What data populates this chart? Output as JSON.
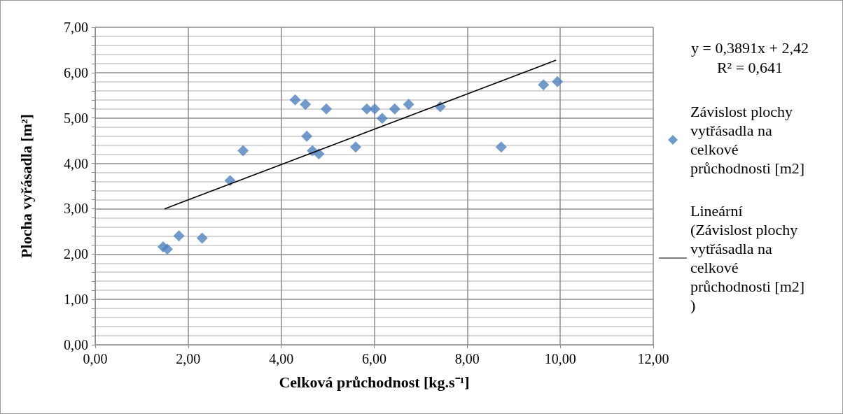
{
  "chart_data": {
    "type": "scatter",
    "xlabel": "Celková průchodnost [kg.s⁻¹]",
    "ylabel": "Plocha vyřásadla [m²]",
    "annotations": [
      "y = 0,3891x + 2,42",
      "R² = 0,641"
    ],
    "series": [
      {
        "name": "Závislost plochy vytřásadla na celkové průchodnosti [m2]",
        "color": "#4f81bd",
        "marker": "diamond",
        "x": [
          1.46,
          1.55,
          1.8,
          2.3,
          2.9,
          3.18,
          4.3,
          4.52,
          4.97,
          4.55,
          4.67,
          4.81,
          5.6,
          5.84,
          6.01,
          6.17,
          6.44,
          6.74,
          7.42,
          8.73,
          9.64,
          9.94
        ],
        "values": [
          2.16,
          2.11,
          2.4,
          2.35,
          3.62,
          4.28,
          5.4,
          5.3,
          5.2,
          4.6,
          4.28,
          4.21,
          4.36,
          5.2,
          5.2,
          4.99,
          5.2,
          5.3,
          5.25,
          4.36,
          5.73,
          5.8
        ]
      },
      {
        "name": "Lineární (Závislost plochy vytřásadla na celkové průchodnosti [m2])",
        "type": "line",
        "color": "#000000",
        "marker": "none",
        "x": [
          1.5,
          9.9
        ],
        "values": [
          3.0,
          6.27
        ]
      }
    ],
    "xlim": [
      0,
      12
    ],
    "xticks": [
      {
        "value": 0,
        "label": "0,00"
      },
      {
        "value": 2,
        "label": "2,00"
      },
      {
        "value": 4,
        "label": "4,00"
      },
      {
        "value": 6,
        "label": "6,00"
      },
      {
        "value": 8,
        "label": "8,00"
      },
      {
        "value": 10,
        "label": "10,00"
      },
      {
        "value": 12,
        "label": "12,00"
      }
    ],
    "ylim": [
      0,
      7
    ],
    "yticks": [
      {
        "value": 0,
        "label": "0,00"
      },
      {
        "value": 0.2,
        "label": null
      },
      {
        "value": 0.4,
        "label": null
      },
      {
        "value": 0.6,
        "label": null
      },
      {
        "value": 0.8,
        "label": null
      },
      {
        "value": 1,
        "label": "1,00"
      },
      {
        "value": 1.2,
        "label": null
      },
      {
        "value": 1.4,
        "label": null
      },
      {
        "value": 1.6,
        "label": null
      },
      {
        "value": 1.8,
        "label": null
      },
      {
        "value": 2,
        "label": "2,00"
      },
      {
        "value": 2.2,
        "label": null
      },
      {
        "value": 2.4,
        "label": null
      },
      {
        "value": 2.6,
        "label": null
      },
      {
        "value": 2.8,
        "label": null
      },
      {
        "value": 3,
        "label": "3,00"
      },
      {
        "value": 3.2,
        "label": null
      },
      {
        "value": 3.4,
        "label": null
      },
      {
        "value": 3.6,
        "label": null
      },
      {
        "value": 3.8,
        "label": null
      },
      {
        "value": 4,
        "label": "4,00"
      },
      {
        "value": 4.2,
        "label": null
      },
      {
        "value": 4.4,
        "label": null
      },
      {
        "value": 4.6,
        "label": null
      },
      {
        "value": 4.8,
        "label": null
      },
      {
        "value": 5,
        "label": "5,00"
      },
      {
        "value": 5.2,
        "label": null
      },
      {
        "value": 5.4,
        "label": null
      },
      {
        "value": 5.6,
        "label": null
      },
      {
        "value": 5.8,
        "label": null
      },
      {
        "value": 6,
        "label": "6,00"
      },
      {
        "value": 6.2,
        "label": null
      },
      {
        "value": 6.4,
        "label": null
      },
      {
        "value": 6.6,
        "label": null
      },
      {
        "value": 6.8,
        "label": null
      },
      {
        "value": 7,
        "label": "7,00"
      }
    ],
    "grid": true,
    "legend": "right"
  }
}
